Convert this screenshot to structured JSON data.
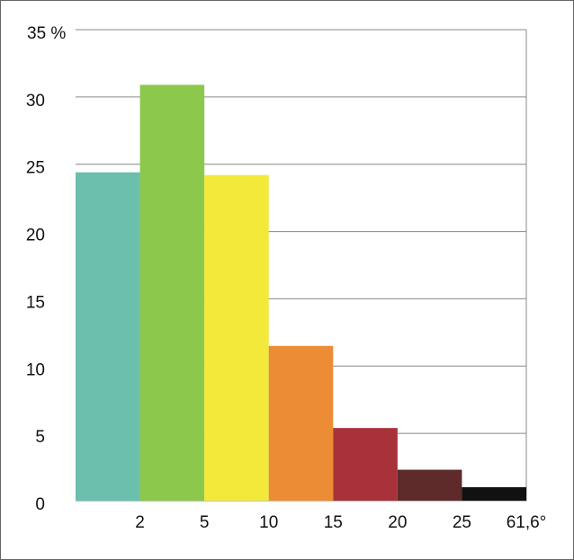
{
  "chart_data": {
    "type": "bar",
    "bin_labels": [
      null,
      "2",
      "5",
      "10",
      "15",
      "20",
      "25",
      "61,6°"
    ],
    "values": [
      24.4,
      30.9,
      24.2,
      11.5,
      5.4,
      2.3,
      1.0
    ],
    "colors": [
      "#6bbfad",
      "#8cc84b",
      "#f2e93a",
      "#ec8c35",
      "#a8323a",
      "#5e2a2a",
      "#111111"
    ],
    "ylim": [
      0,
      35
    ],
    "yticks": [
      0,
      5,
      10,
      15,
      20,
      25,
      30,
      {
        "value": 35,
        "label": "35 %"
      }
    ],
    "grid": true
  }
}
